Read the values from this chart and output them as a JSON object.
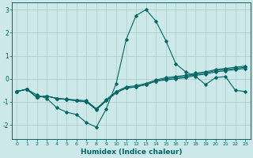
{
  "xlabel": "Humidex (Indice chaleur)",
  "background_color": "#cce8e8",
  "grid_color": "#aacccc",
  "line_color": "#006666",
  "xlim": [
    -0.5,
    23.5
  ],
  "ylim": [
    -2.6,
    3.3
  ],
  "xticks": [
    0,
    1,
    2,
    3,
    4,
    5,
    6,
    7,
    8,
    9,
    10,
    11,
    12,
    13,
    14,
    15,
    16,
    17,
    18,
    19,
    20,
    21,
    22,
    23
  ],
  "yticks": [
    -2,
    -1,
    0,
    1,
    2,
    3
  ],
  "lines": [
    {
      "x": [
        0,
        1,
        2,
        3,
        4,
        5,
        6,
        7,
        8,
        9,
        10,
        11,
        12,
        13,
        14,
        15,
        16,
        17,
        18,
        19,
        20,
        21,
        22,
        23
      ],
      "y": [
        -0.55,
        -0.45,
        -0.7,
        -0.85,
        -1.25,
        -1.45,
        -1.55,
        -1.9,
        -2.1,
        -1.3,
        -0.2,
        1.7,
        2.75,
        3.0,
        2.5,
        1.65,
        0.65,
        0.3,
        0.1,
        -0.25,
        0.05,
        0.1,
        -0.5,
        -0.55
      ]
    },
    {
      "x": [
        0,
        1,
        2,
        3,
        4,
        5,
        6,
        7,
        8,
        9,
        10,
        11,
        12,
        13,
        14,
        15,
        16,
        17,
        18,
        19,
        20,
        21,
        22,
        23
      ],
      "y": [
        -0.55,
        -0.45,
        -0.8,
        -0.75,
        -0.85,
        -0.9,
        -0.95,
        -1.0,
        -1.3,
        -0.95,
        -0.6,
        -0.4,
        -0.35,
        -0.25,
        -0.1,
        -0.05,
        0.0,
        0.05,
        0.15,
        0.2,
        0.3,
        0.35,
        0.4,
        0.45
      ]
    },
    {
      "x": [
        0,
        1,
        2,
        3,
        4,
        5,
        6,
        7,
        8,
        9,
        10,
        11,
        12,
        13,
        14,
        15,
        16,
        17,
        18,
        19,
        20,
        21,
        22,
        23
      ],
      "y": [
        -0.55,
        -0.45,
        -0.8,
        -0.75,
        -0.85,
        -0.9,
        -0.95,
        -1.0,
        -1.35,
        -0.95,
        -0.6,
        -0.4,
        -0.35,
        -0.25,
        -0.1,
        0.0,
        0.05,
        0.1,
        0.2,
        0.25,
        0.35,
        0.4,
        0.45,
        0.5
      ]
    },
    {
      "x": [
        0,
        1,
        2,
        3,
        4,
        5,
        6,
        7,
        8,
        9,
        10,
        11,
        12,
        13,
        14,
        15,
        16,
        17,
        18,
        19,
        20,
        21,
        22,
        23
      ],
      "y": [
        -0.55,
        -0.45,
        -0.8,
        -0.75,
        -0.85,
        -0.88,
        -0.92,
        -0.95,
        -1.3,
        -0.9,
        -0.55,
        -0.35,
        -0.3,
        -0.2,
        -0.05,
        0.05,
        0.1,
        0.15,
        0.25,
        0.3,
        0.4,
        0.45,
        0.5,
        0.55
      ]
    }
  ]
}
